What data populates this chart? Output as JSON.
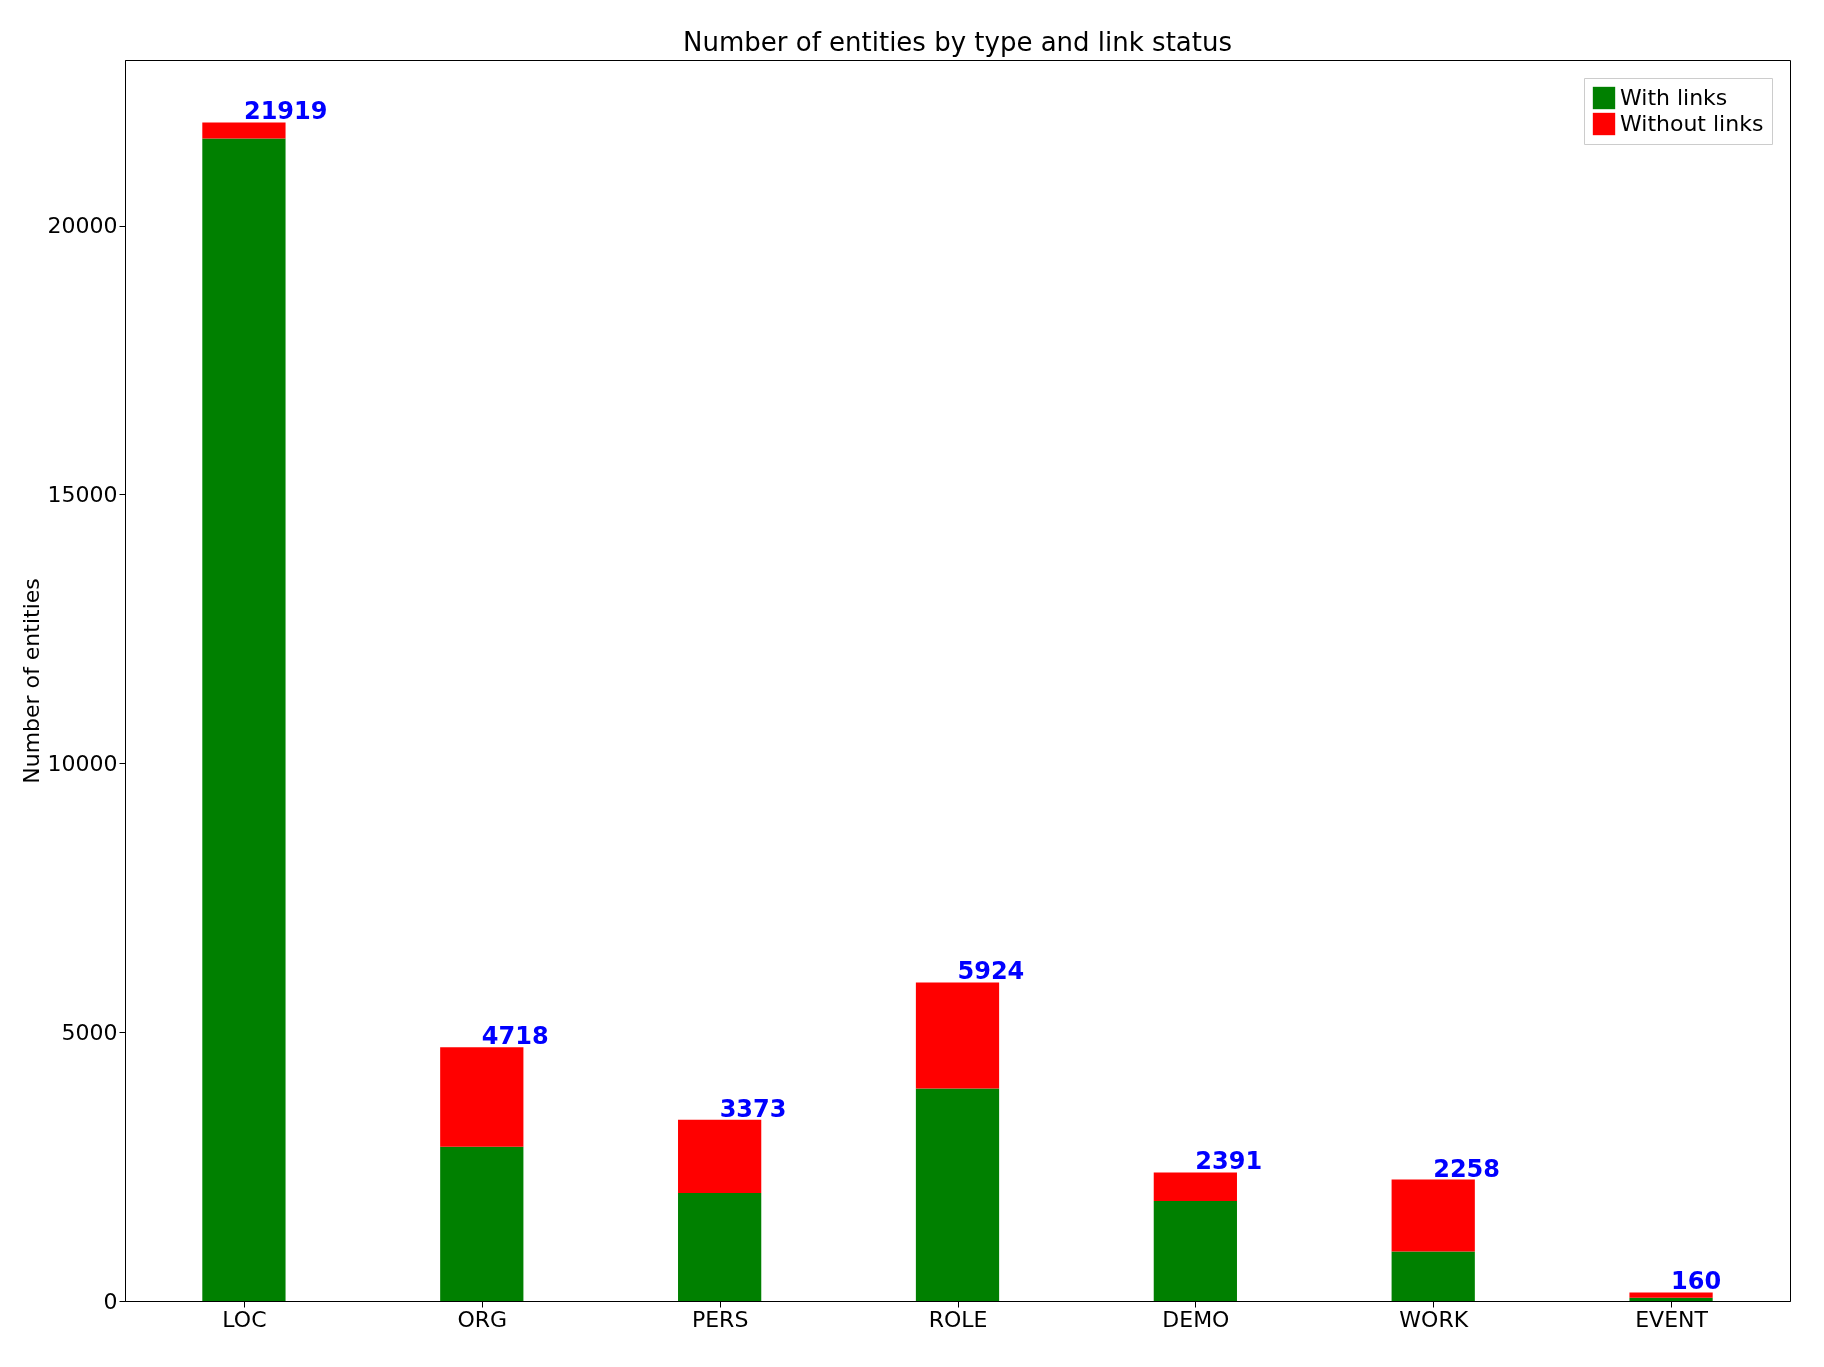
{
  "chart_data": {
    "type": "bar",
    "title": "Number of entities by type and link status",
    "ylabel": "Number of entities",
    "categories": [
      "LOC",
      "ORG",
      "PERS",
      "ROLE",
      "DEMO",
      "WORK",
      "EVENT"
    ],
    "stacked": true,
    "series": [
      {
        "name": "With links",
        "color": "#008000",
        "values": [
          21620,
          2870,
          2010,
          3950,
          1860,
          920,
          60
        ]
      },
      {
        "name": "Without links",
        "color": "#ff0000",
        "values": [
          299,
          1848,
          1363,
          1974,
          531,
          1338,
          100
        ]
      }
    ],
    "totals": [
      "21919",
      "4718",
      "3373",
      "5924",
      "2391",
      "2258",
      "160"
    ],
    "ylim": [
      0,
      23080
    ],
    "yticks": [
      0,
      5000,
      10000,
      15000,
      20000
    ],
    "grid": false,
    "legend": "top right"
  }
}
